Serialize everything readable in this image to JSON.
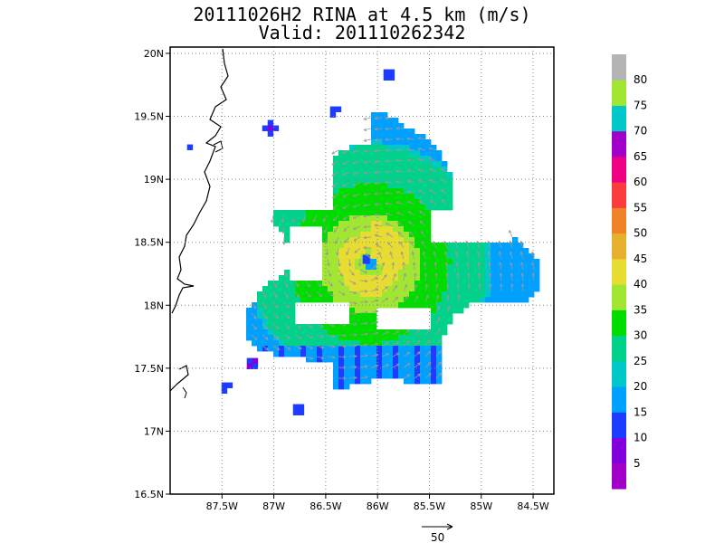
{
  "title": {
    "line1": "20111026H2 RINA at 4.5 km (m/s)",
    "line2": "Valid: 201110262342"
  },
  "map": {
    "lon_ticks": [
      "87.5W",
      "87W",
      "86.5W",
      "86W",
      "85.5W",
      "85W",
      "84.5W"
    ],
    "lon_values": [
      -87.5,
      -87.0,
      -86.5,
      -86.0,
      -85.5,
      -85.0,
      -84.5
    ],
    "lat_ticks": [
      "20N",
      "19.5N",
      "19N",
      "18.5N",
      "18N",
      "17.5N",
      "17N",
      "16.5N"
    ],
    "lat_values": [
      20.0,
      19.5,
      19.0,
      18.5,
      18.0,
      17.5,
      17.0,
      16.5
    ],
    "lon_range": [
      -88.0,
      -84.3
    ],
    "lat_range": [
      16.5,
      20.05
    ],
    "grid": "dotted",
    "center_lon": -86.1,
    "center_lat": 18.35
  },
  "colorbar": {
    "labels": [
      "5",
      "10",
      "15",
      "20",
      "25",
      "30",
      "35",
      "40",
      "45",
      "50",
      "55",
      "60",
      "65",
      "70",
      "75",
      "80"
    ],
    "colors": [
      "#a000c8",
      "#8200dc",
      "#1e3cff",
      "#00a0ff",
      "#00c8c8",
      "#00d28c",
      "#00dc00",
      "#a0e632",
      "#e6dc32",
      "#e6af2d",
      "#f08228",
      "#fa3c3c",
      "#f00082",
      "#a000c8",
      "#00c8c8",
      "#a0e632",
      "#b4b4b4"
    ]
  },
  "reference_vector": {
    "label": "50"
  }
}
